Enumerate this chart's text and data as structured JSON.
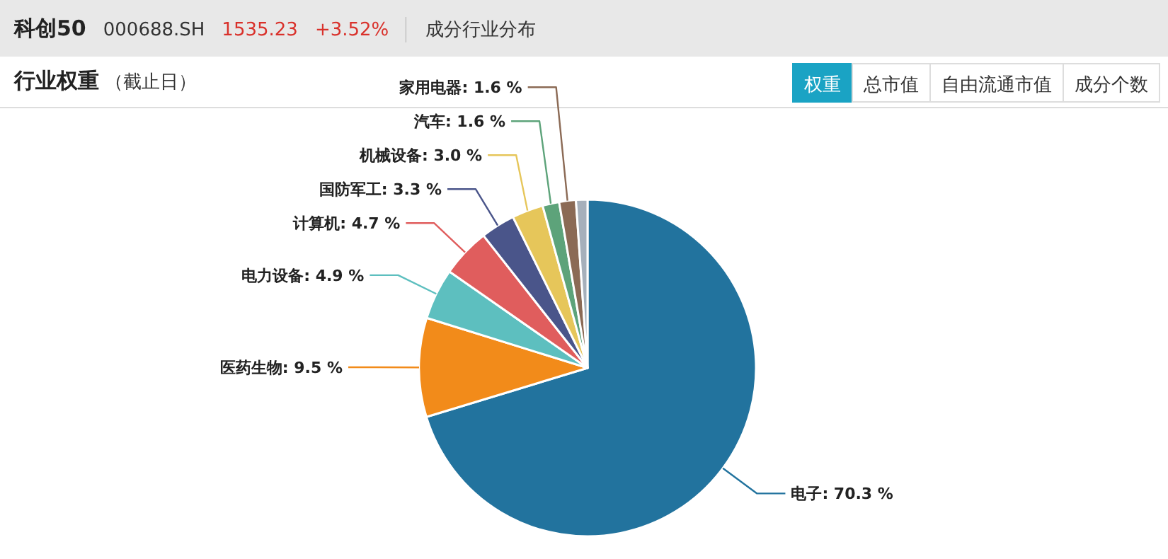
{
  "chart_data": {
    "type": "pie",
    "title": "行业权重",
    "subtitle": "（截止日）",
    "annotations": [
      "科创50",
      "000688.SH",
      "1535.23",
      "+3.52%",
      "成分行业分布",
      "权重",
      "总市值",
      "自由流通市值",
      "成分个数"
    ],
    "categories": [
      "电子",
      "医药生物",
      "电力设备",
      "计算机",
      "国防军工",
      "机械设备",
      "汽车",
      "家用电器",
      null
    ],
    "values": [
      70.3,
      9.5,
      4.9,
      4.7,
      3.3,
      3.0,
      1.6,
      1.6,
      1.1
    ],
    "colors": [
      "#22739e",
      "#f28b1a",
      "#5dbfbf",
      "#e05d5d",
      "#4a558a",
      "#e6c65a",
      "#5da37a",
      "#8b6a55",
      "#a6b0bb"
    ],
    "value_labels": [
      ": 70.3 %",
      ": 9.5 %",
      ": 4.9 %",
      ": 4.7 %",
      ": 3.3 %",
      ": 3.0 %",
      ": 1.6 %",
      ": 1.6 %",
      null
    ]
  }
}
